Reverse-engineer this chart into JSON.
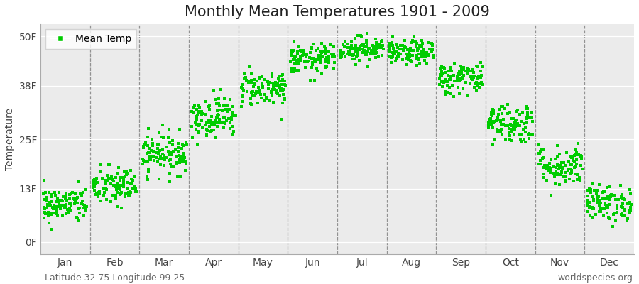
{
  "title": "Monthly Mean Temperatures 1901 - 2009",
  "ylabel": "Temperature",
  "dot_color": "#00cc00",
  "background_color": "#ffffff",
  "plot_bg_color": "#ebebeb",
  "yticks": [
    0,
    13,
    25,
    38,
    50
  ],
  "ytick_labels": [
    "0F",
    "13F",
    "25F",
    "38F",
    "50F"
  ],
  "months": [
    "Jan",
    "Feb",
    "Mar",
    "Apr",
    "May",
    "Jun",
    "Jul",
    "Aug",
    "Sep",
    "Oct",
    "Nov",
    "Dec"
  ],
  "legend_label": "Mean Temp",
  "footer_left": "Latitude 32.75 Longitude 99.25",
  "footer_right": "worldspecies.org",
  "n_years": 109,
  "month_mean_temps_F": [
    9.0,
    13.5,
    21.5,
    30.5,
    37.5,
    44.5,
    47.0,
    46.0,
    40.0,
    29.0,
    18.5,
    9.5
  ],
  "month_std_temps_F": [
    2.2,
    2.5,
    2.5,
    2.5,
    2.2,
    1.8,
    1.5,
    1.5,
    2.0,
    2.5,
    2.5,
    2.2
  ],
  "marker_size": 5,
  "title_fontsize": 15,
  "axis_label_fontsize": 10,
  "tick_fontsize": 10,
  "footer_fontsize": 9
}
